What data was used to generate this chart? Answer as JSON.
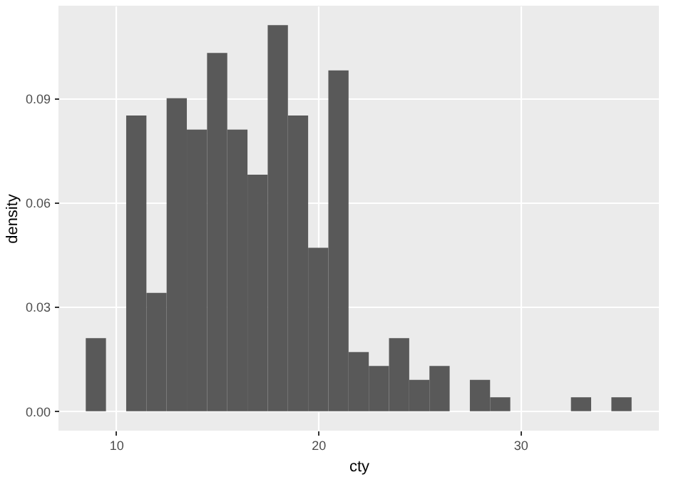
{
  "chart_data": {
    "type": "histogram",
    "xlabel": "cty",
    "ylabel": "density",
    "bins": [
      8.5,
      9.5,
      10.5,
      11.5,
      12.5,
      13.5,
      14.5,
      15.5,
      16.5,
      17.5,
      18.5,
      19.5,
      20.5,
      21.5,
      22.5,
      23.5,
      24.5,
      25.5,
      26.5,
      27.5,
      28.5,
      29.5,
      30.5,
      31.5,
      32.5,
      33.5,
      34.5,
      35.5
    ],
    "values": [
      0.021,
      0,
      0.085,
      0.034,
      0.09,
      0.081,
      0.103,
      0.081,
      0.068,
      0.111,
      0.085,
      0.047,
      0.098,
      0.017,
      0.013,
      0.021,
      0.009,
      0.013,
      0,
      0.009,
      0.004,
      0,
      0,
      0,
      0.004,
      0,
      0.004
    ],
    "color": "#595959",
    "xlim": [
      7.15,
      36.85
    ],
    "xticks": [
      10,
      20,
      30
    ],
    "ylim": [
      -0.0056,
      0.1166
    ],
    "yticks": [
      {
        "value": 0,
        "label": "0.00"
      },
      0.03,
      0.06,
      0.09
    ],
    "grid": true
  }
}
